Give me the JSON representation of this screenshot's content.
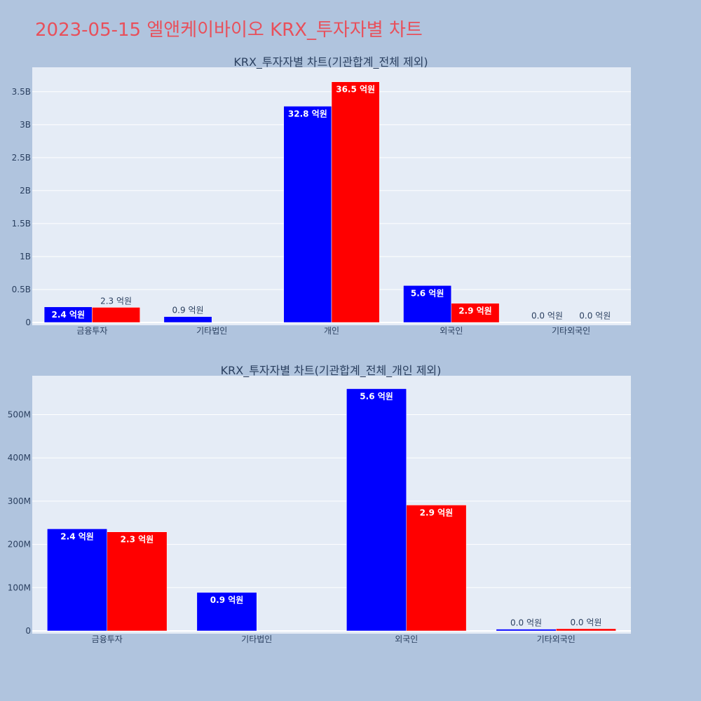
{
  "page": {
    "title": "2023-05-15 엘앤케이바이오 KRX_투자자별 차트"
  },
  "colors": {
    "background": "#b0c4de",
    "plot_background": "#e5ecf6",
    "title": "#e8505b",
    "series_buy": "#0000ff",
    "series_sell": "#ff0000",
    "text": "#2a3f5f"
  },
  "chart_data": [
    {
      "type": "bar",
      "title": "KRX_투자자별 차트(기관합계_전체 제외)",
      "categories": [
        "금융투자",
        "기타법인",
        "개인",
        "외국인",
        "기타외국인"
      ],
      "ylim": [
        0,
        3870000000
      ],
      "yticks": [
        {
          "value": 0,
          "label": "0"
        },
        {
          "value": 500000000,
          "label": "0.5B"
        },
        {
          "value": 1000000000,
          "label": "1B"
        },
        {
          "value": 1500000000,
          "label": "1.5B"
        },
        {
          "value": 2000000000,
          "label": "2B"
        },
        {
          "value": 2500000000,
          "label": "2.5B"
        },
        {
          "value": 3000000000,
          "label": "3B"
        },
        {
          "value": 3500000000,
          "label": "3.5B"
        }
      ],
      "grid": true,
      "series": [
        {
          "color": "#0000ff",
          "values": [
            236000000,
            89000000,
            3280000000,
            560000000,
            4000000
          ],
          "labels": [
            "2.4 억원",
            "0.9 억원",
            "32.8 억원",
            "5.6 억원",
            "0.0 억원"
          ]
        },
        {
          "color": "#ff0000",
          "values": [
            229000000,
            0,
            3650000000,
            291000000,
            5000000
          ],
          "labels": [
            "2.3 억원",
            "",
            "36.5 억원",
            "2.9 억원",
            "0.0 억원"
          ]
        }
      ]
    },
    {
      "type": "bar",
      "title": "KRX_투자자별 차트(기관합계_전체_개인 제외)",
      "categories": [
        "금융투자",
        "기타법인",
        "외국인",
        "기타외국인"
      ],
      "ylim": [
        0,
        590000000
      ],
      "yticks": [
        {
          "value": 0,
          "label": "0"
        },
        {
          "value": 100000000,
          "label": "100M"
        },
        {
          "value": 200000000,
          "label": "200M"
        },
        {
          "value": 300000000,
          "label": "300M"
        },
        {
          "value": 400000000,
          "label": "400M"
        },
        {
          "value": 500000000,
          "label": "500M"
        }
      ],
      "grid": true,
      "series": [
        {
          "color": "#0000ff",
          "values": [
            236000000,
            89000000,
            560000000,
            4000000
          ],
          "labels": [
            "2.4 억원",
            "0.9 억원",
            "5.6 억원",
            "0.0 억원"
          ]
        },
        {
          "color": "#ff0000",
          "values": [
            229000000,
            0,
            291000000,
            5000000
          ],
          "labels": [
            "2.3 억원",
            "",
            "2.9 억원",
            "0.0 억원"
          ]
        }
      ]
    }
  ]
}
